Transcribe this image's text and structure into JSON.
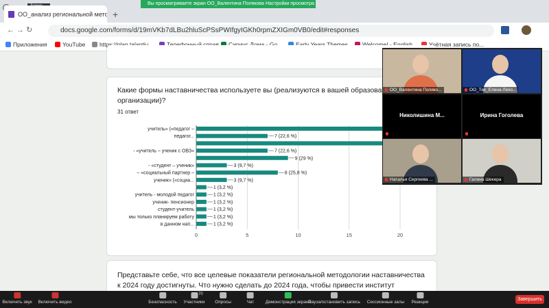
{
  "zoom_banner": {
    "text": "Вы просматриваете экран ОО_Валентина Полякова",
    "settings": "Настройки просмотра"
  },
  "recording": "Запись...",
  "browser": {
    "tab_title": "ОО_анализ региональной мето",
    "url": "docs.google.com/forms/d/19mVKb7dLBu2hluScPSsPWIfgyIGKh0rpmZXIGm0VB0/edit#responses",
    "bookmarks": [
      "Приложения",
      "YouTube",
      "https://plan.talantiu...",
      "Телефонный справ...",
      "Сириус.Дома - Go...",
      "Early Years Themes...",
      "Welcome! - English...",
      "Учётная запись по..."
    ]
  },
  "question_card": {
    "question": "Какие формы наставничества используете вы (реализуются в вашей образовательной организации)?",
    "responses": "31 ответ"
  },
  "chart_data": {
    "type": "bar",
    "orientation": "horizontal",
    "color": "#178a7e",
    "grid": true,
    "categories": [
      "учитель» («педагог –",
      "педагог...",
      null,
      "- «учитель – ученик с ОВЗ»",
      null,
      "- «студент – ученик»",
      "– «социальный партнер –",
      "ученик» («социа...",
      null,
      "учитель - молодой педагог",
      "ученик- пенсионер",
      "студент-учитель",
      "мы только планируем работу",
      "в данном нап..."
    ],
    "values": [
      19,
      7,
      19,
      7,
      9,
      3,
      8,
      3,
      1,
      1,
      1,
      1,
      1,
      1
    ],
    "value_labels": [
      null,
      "7 (22,6 %)",
      null,
      "7 (22,6 %)",
      "9 (29 %)",
      "3 (9,7 %)",
      "8 (25,8 %)",
      "3 (9,7 %)",
      "1 (3,2 %)",
      "1 (3,2 %)",
      "1 (3,2 %)",
      "1 (3,2 %)",
      "1 (3,2 %)",
      "1 (3,2 %)"
    ],
    "xlim": [
      0,
      20
    ],
    "xticks": [
      0,
      5,
      10,
      15,
      20
    ]
  },
  "next_card": {
    "text": "Представьте себе, что все целевые показатели региональной методологии наставничества к 2024 году достигнуты. Что нужно сделать до 2024 года, чтобы привести институт"
  },
  "gallery": [
    "ОО_Валентина Поляко...",
    "ОО_Тех_Елена Лехо...",
    "Николишина  М...",
    "Ирина Гоголева",
    "Наталья Сергеева ...",
    "Галина Шекера"
  ],
  "toolbar": {
    "left": [
      "Включить звук",
      "Включить видео"
    ],
    "center": [
      "Безопасность",
      "Участники",
      "Опросы",
      "Чат",
      "Демонстрация экрана",
      "Пауза/остановить запись",
      "Сессионные залы",
      "Реакции"
    ],
    "participants_count": 70,
    "end": "Завершить"
  }
}
